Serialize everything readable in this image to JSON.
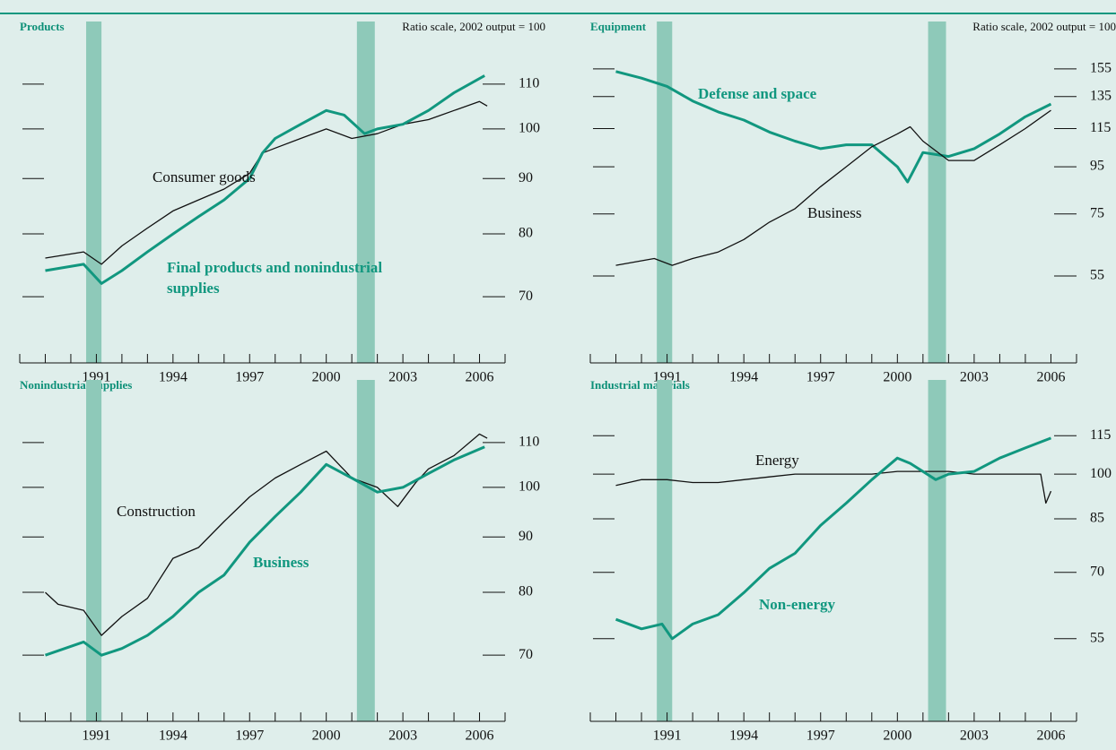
{
  "chart_data": [
    {
      "type": "line",
      "title": "Products",
      "subtitle": "Ratio scale, 2002 output = 100",
      "log_scale": true,
      "xlim": [
        1988,
        2007
      ],
      "xticks": [
        1991,
        1994,
        1997,
        2000,
        2003,
        2006
      ],
      "xminor": [
        1989,
        1990,
        1991,
        1992,
        1993,
        1994,
        1995,
        1996,
        1997,
        1998,
        1999,
        2000,
        2001,
        2002,
        2003,
        2004,
        2005,
        2006
      ],
      "ylim": [
        61.4,
        124.7
      ],
      "yticks": [
        70,
        80,
        90,
        100,
        110
      ],
      "shaded_periods": [
        [
          1990.6,
          1991.2
        ],
        [
          2001.2,
          2001.9
        ]
      ],
      "shade_color": "#8ec9b9",
      "series": [
        {
          "name": "Consumer goods",
          "color": "#111111",
          "x": [
            1989,
            1990.5,
            1991.2,
            1992,
            1993,
            1994,
            1995,
            1996,
            1997,
            1997.5,
            1998,
            1999,
            2000,
            2001,
            2002,
            2003,
            2004,
            2005,
            2006,
            2006.3
          ],
          "values": [
            76,
            77,
            75,
            78,
            81,
            84,
            86,
            88,
            91,
            95,
            96,
            98,
            100,
            98,
            99,
            101,
            102,
            104,
            106,
            105
          ]
        },
        {
          "name": "Final products and nonindustrial supplies",
          "color": "#11977f",
          "x": [
            1989,
            1990.5,
            1991.2,
            1992,
            1993,
            1994,
            1995,
            1996,
            1997,
            1997.5,
            1998,
            1999,
            2000,
            2000.7,
            2001.5,
            2002,
            2003,
            2004,
            2005,
            2006.2
          ],
          "values": [
            74,
            75,
            72,
            74,
            77,
            80,
            83,
            86,
            90,
            95,
            98,
            101,
            104,
            103,
            99,
            100,
            101,
            104,
            108,
            112
          ]
        }
      ]
    },
    {
      "type": "line",
      "title": "Equipment",
      "subtitle": "Ratio scale, 2002 output = 100",
      "log_scale": true,
      "xlim": [
        1988,
        2007
      ],
      "xticks": [
        1991,
        1994,
        1997,
        2000,
        2003,
        2006
      ],
      "xminor": [
        1989,
        1990,
        1991,
        1992,
        1993,
        1994,
        1995,
        1996,
        1997,
        1998,
        1999,
        2000,
        2001,
        2002,
        2003,
        2004,
        2005,
        2006
      ],
      "ylim": [
        36.4,
        193
      ],
      "yticks": [
        55,
        75,
        95,
        115,
        135,
        155
      ],
      "shaded_periods": [
        [
          1990.6,
          1991.2
        ],
        [
          2001.2,
          2001.9
        ]
      ],
      "shade_color": "#8ec9b9",
      "series": [
        {
          "name": "Defense and space",
          "color": "#11977f",
          "x": [
            1989,
            1990,
            1991,
            1992,
            1993,
            1994,
            1995,
            1996,
            1997,
            1998,
            1999,
            2000,
            2000.4,
            2001,
            2002,
            2003,
            2004,
            2005,
            2006
          ],
          "values": [
            153,
            148,
            142,
            132,
            125,
            120,
            113,
            108,
            104,
            106,
            106,
            95,
            88,
            102,
            100,
            104,
            112,
            122,
            130
          ]
        },
        {
          "name": "Business",
          "color": "#111111",
          "x": [
            1989,
            1990.5,
            1991.2,
            1992,
            1993,
            1994,
            1995,
            1996,
            1997,
            1998,
            1999,
            2000,
            2000.5,
            2001,
            2002,
            2003,
            2004,
            2005,
            2006
          ],
          "values": [
            58,
            60,
            58,
            60,
            62,
            66,
            72,
            77,
            86,
            95,
            105,
            112,
            116,
            108,
            98,
            98,
            106,
            115,
            126
          ]
        }
      ]
    },
    {
      "type": "line",
      "title": "Nonindustrial supplies",
      "log_scale": true,
      "xlim": [
        1988,
        2007
      ],
      "xticks": [
        1991,
        1994,
        1997,
        2000,
        2003,
        2006
      ],
      "xminor": [
        1989,
        1990,
        1991,
        1992,
        1993,
        1994,
        1995,
        1996,
        1997,
        1998,
        1999,
        2000,
        2001,
        2002,
        2003,
        2004,
        2005,
        2006
      ],
      "ylim": [
        61.4,
        124.7
      ],
      "yticks": [
        70,
        80,
        90,
        100,
        110
      ],
      "shaded_periods": [
        [
          1990.6,
          1991.2
        ],
        [
          2001.2,
          2001.9
        ]
      ],
      "shade_color": "#8ec9b9",
      "series": [
        {
          "name": "Construction",
          "color": "#111111",
          "x": [
            1989,
            1989.5,
            1990.5,
            1991.2,
            1992,
            1993,
            1994,
            1995,
            1996,
            1997,
            1998,
            1999,
            2000,
            2001,
            2002,
            2002.8,
            2003.5,
            2004,
            2005,
            2006,
            2006.3
          ],
          "values": [
            80,
            78,
            77,
            73,
            76,
            79,
            86,
            88,
            93,
            98,
            102,
            105,
            108,
            102,
            100,
            96,
            101,
            104,
            107,
            112,
            111
          ]
        },
        {
          "name": "Business",
          "color": "#11977f",
          "x": [
            1989,
            1990.5,
            1991.2,
            1992,
            1993,
            1994,
            1995,
            1996,
            1997,
            1998,
            1999,
            2000,
            2001,
            2002,
            2003,
            2004,
            2005,
            2006.2
          ],
          "values": [
            70,
            72,
            70,
            71,
            73,
            76,
            80,
            83,
            89,
            94,
            99,
            105,
            102,
            99,
            100,
            103,
            106,
            109
          ]
        }
      ]
    },
    {
      "type": "line",
      "title": "Industrial materials",
      "log_scale": true,
      "xlim": [
        1988,
        2007
      ],
      "xticks": [
        1991,
        1994,
        1997,
        2000,
        2003,
        2006
      ],
      "xminor": [
        1989,
        1990,
        1991,
        1992,
        1993,
        1994,
        1995,
        1996,
        1997,
        1998,
        1999,
        2000,
        2001,
        2002,
        2003,
        2004,
        2005,
        2006
      ],
      "ylim": [
        41.4,
        139
      ],
      "yticks": [
        55,
        70,
        85,
        100,
        115
      ],
      "shaded_periods": [
        [
          1990.6,
          1991.2
        ],
        [
          2001.2,
          2001.9
        ]
      ],
      "shade_color": "#8ec9b9",
      "series": [
        {
          "name": "Energy",
          "color": "#111111",
          "x": [
            1989,
            1990,
            1991,
            1992,
            1993,
            1994,
            1995,
            1996,
            1997,
            1998,
            1999,
            2000,
            2001,
            2002,
            2003,
            2004,
            2005,
            2005.6,
            2005.8,
            2006
          ],
          "values": [
            96,
            98,
            98,
            97,
            97,
            98,
            99,
            100,
            100,
            100,
            100,
            101,
            101,
            101,
            100,
            100,
            100,
            100,
            90,
            94
          ]
        },
        {
          "name": "Non-energy",
          "color": "#11977f",
          "x": [
            1989,
            1990,
            1990.8,
            1991.2,
            1992,
            1993,
            1994,
            1995,
            1996,
            1997,
            1998,
            1999,
            2000,
            2000.5,
            2001.5,
            2002,
            2003,
            2004,
            2005,
            2006
          ],
          "values": [
            59,
            57,
            58,
            55,
            58,
            60,
            65,
            71,
            75,
            83,
            90,
            98,
            106,
            104,
            98,
            100,
            101,
            106,
            110,
            114
          ]
        }
      ]
    }
  ]
}
